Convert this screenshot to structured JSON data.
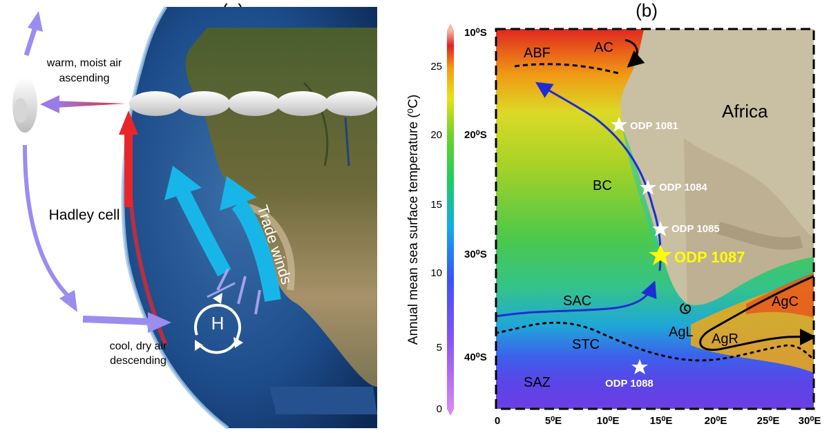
{
  "panel_a": {
    "label": "(a)",
    "warm_air_line1": "warm, moist air",
    "warm_air_line2": "ascending",
    "hadley_cell": "Hadley cell",
    "trade_winds": "Trade winds",
    "high_pressure": "H",
    "cool_air_line1": "cool, dry air",
    "cool_air_line2": "descending"
  },
  "panel_b": {
    "label": "(b)",
    "colorbar": {
      "title": "Annual mean sea surface temperature (⁰C)",
      "ticks": [
        "0",
        "5",
        "10",
        "15",
        "20",
        "25"
      ]
    },
    "y_ticks": [
      "10⁰S",
      "20⁰S",
      "30⁰S",
      "40⁰S"
    ],
    "x_ticks": [
      "0",
      "5⁰E",
      "10⁰E",
      "15⁰E",
      "20⁰E",
      "25⁰E",
      "30⁰E"
    ],
    "continent": "Africa",
    "currents": {
      "ac": "AC",
      "abf": "ABF",
      "bc": "BC",
      "sac": "SAC",
      "agc": "AgC",
      "agl": "AgL",
      "agr": "AgR",
      "stc": "STC",
      "saz": "SAZ"
    },
    "sites": {
      "odp1081": "ODP 1081",
      "odp1084": "ODP 1084",
      "odp1085": "ODP 1085",
      "odp1087": "ODP 1087",
      "odp1088": "ODP 1088"
    },
    "colors": {
      "current_arrow": "#1f2bd6",
      "highlight_site": "#ffff00"
    }
  }
}
